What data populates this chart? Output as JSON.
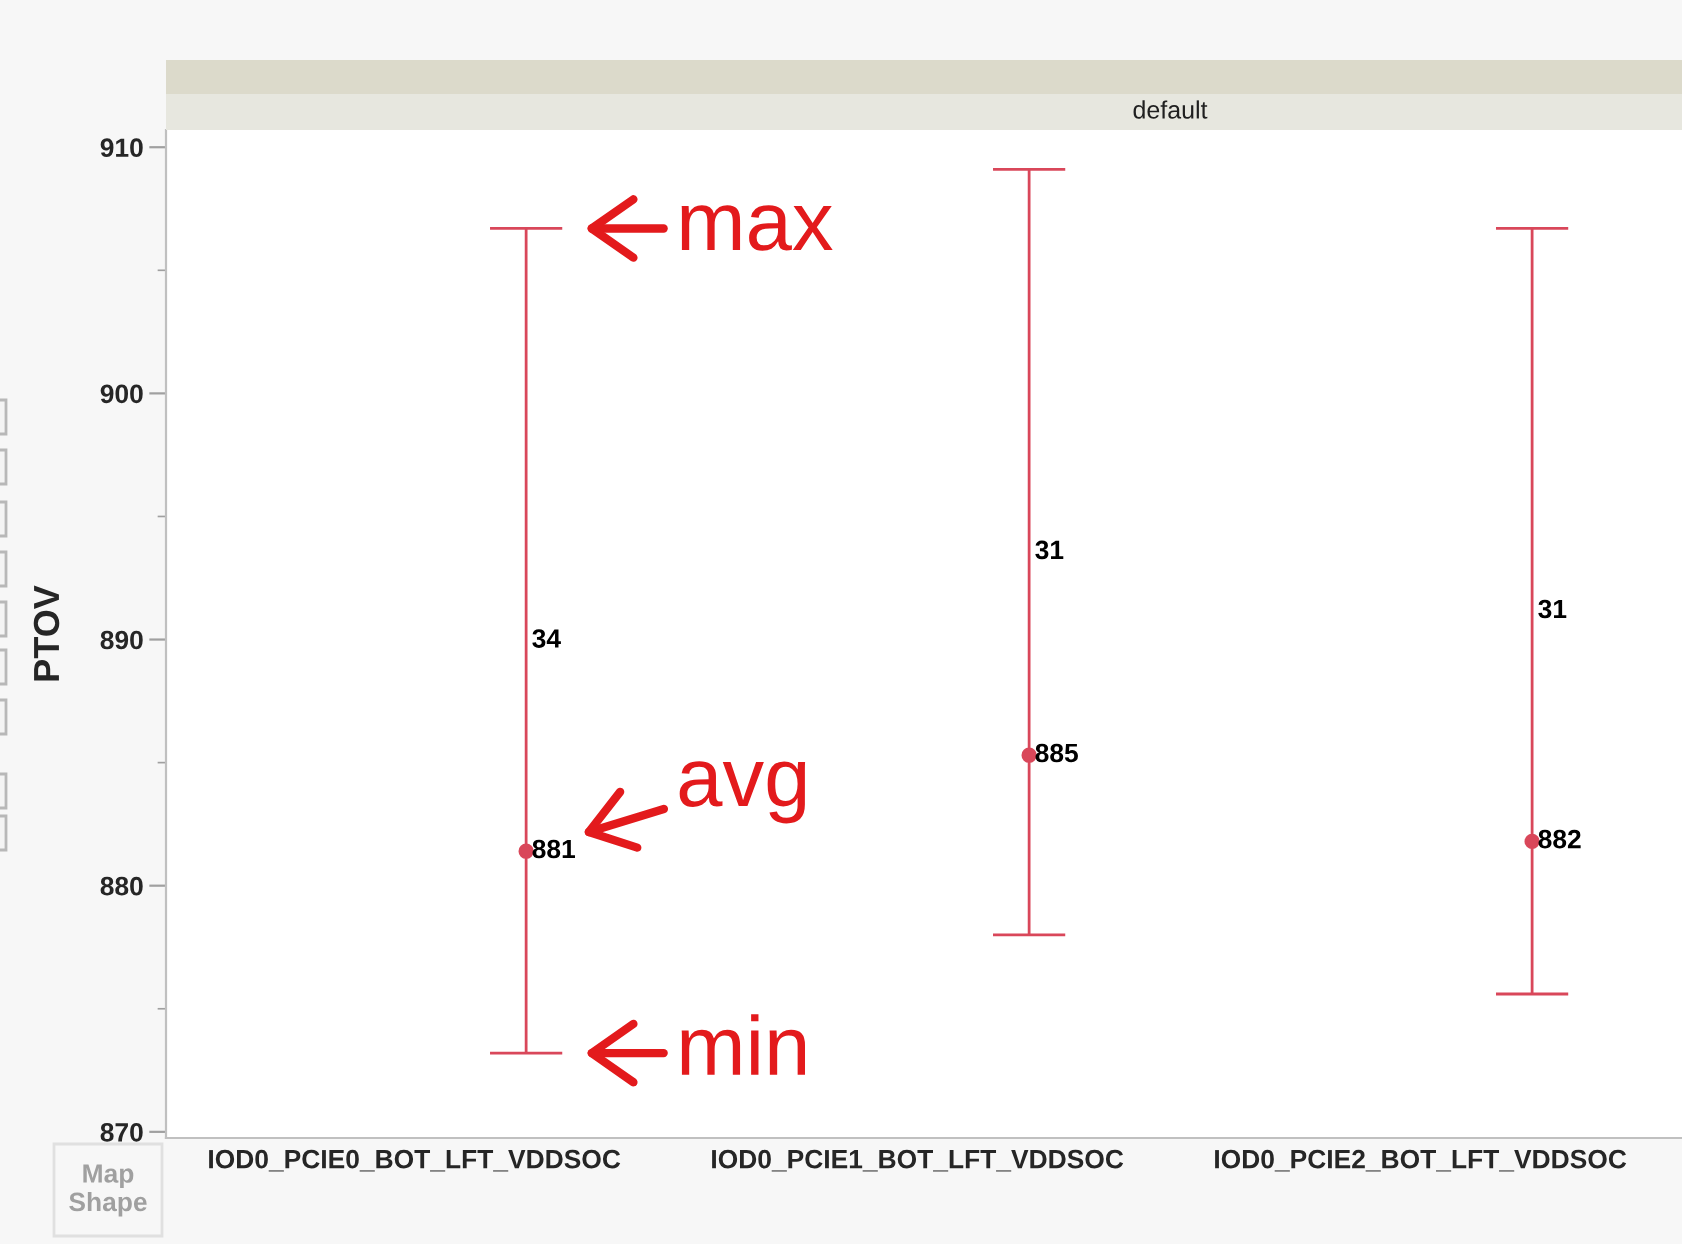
{
  "chart_data": {
    "type": "scatter",
    "title": "default",
    "ylabel": "PTOV",
    "categories": [
      "IOD0_PCIE0_BOT_LFT_VDDSOC",
      "IOD0_PCIE1_BOT_LFT_VDDSOC",
      "IOD0_PCIE2_BOT_LFT_VDDSOC"
    ],
    "series": [
      {
        "color": "#d9475a",
        "values": [
          881.4,
          885.3,
          881.8
        ],
        "errors": [
          [
            873.2,
            906.7
          ],
          [
            878.0,
            909.1
          ],
          [
            875.6,
            906.7
          ]
        ],
        "value_labels": [
          "881",
          "885",
          "882"
        ]
      }
    ],
    "marker": "circle",
    "ylim": [
      869.75,
      910.7
    ],
    "yticks": [
      870,
      {
        "value": 875,
        "label": null
      },
      880,
      {
        "value": 885,
        "label": null
      },
      890,
      {
        "value": 895,
        "label": null
      },
      900,
      {
        "value": 905,
        "label": null
      },
      910
    ],
    "annotations": [
      "34",
      "31",
      "31",
      "max",
      "avg",
      "min",
      "Map Shape"
    ]
  }
}
